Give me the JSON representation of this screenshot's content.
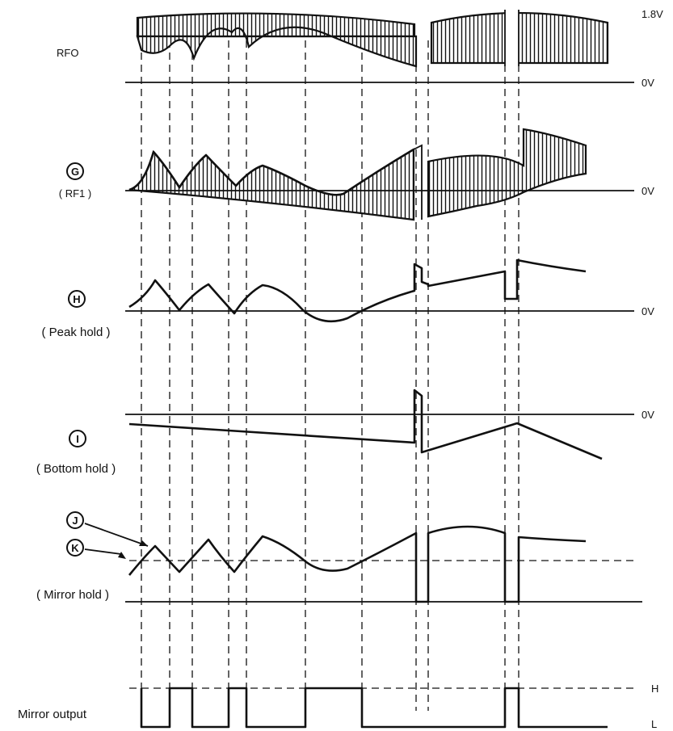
{
  "labels": {
    "rfo": "RFO",
    "g_circle": "G",
    "g_sub": "( RF1 )",
    "h_circle": "H",
    "h_sub": "( Peak hold )",
    "i_circle": "I",
    "i_sub": "( Bottom hold )",
    "j_circle": "J",
    "k_circle": "K",
    "mirror_hold": "( Mirror hold )",
    "mirror_output": "Mirror output"
  },
  "levels": {
    "v18": "1.8V",
    "zero_rfo": "0V",
    "zero_g": "0V",
    "zero_h": "0V",
    "zero_i": "0V",
    "high": "H",
    "low": "L"
  },
  "colors": {
    "ink": "#111111",
    "paper": "#ffffff"
  }
}
